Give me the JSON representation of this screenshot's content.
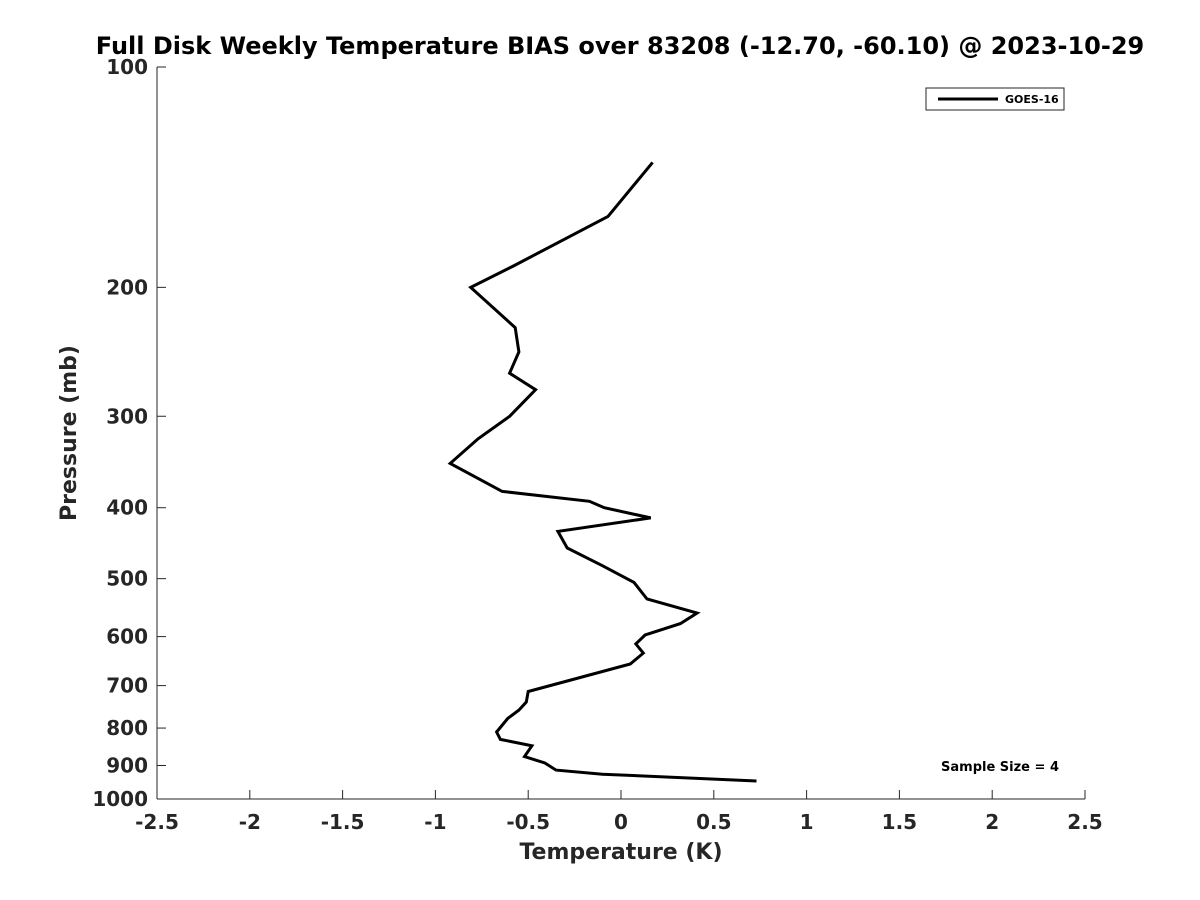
{
  "chart_data": {
    "type": "line",
    "title": "Full Disk Weekly Temperature BIAS over 83208 (-12.70, -60.10) @ 2023-10-29",
    "xlabel": "Temperature (K)",
    "ylabel": "Pressure (mb)",
    "xlim": [
      -2.5,
      2.5
    ],
    "ylim": [
      100,
      1000
    ],
    "y_scale": "log",
    "y_reversed": true,
    "grid": false,
    "x_ticks": [
      -2.5,
      -2,
      -1.5,
      -1,
      -0.5,
      0,
      0.5,
      1,
      1.5,
      2,
      2.5
    ],
    "x_tick_labels": [
      "-2.5",
      "-2",
      "-1.5",
      "-1",
      "-0.5",
      "0",
      "0.5",
      "1",
      "1.5",
      "2",
      "2.5"
    ],
    "y_ticks": [
      100,
      200,
      300,
      400,
      500,
      600,
      700,
      800,
      900,
      1000
    ],
    "y_tick_labels": [
      "100",
      "200",
      "300",
      "400",
      "500",
      "600",
      "700",
      "800",
      "900",
      "1000"
    ],
    "legend_position": "top-right",
    "series": [
      {
        "name": "GOES-16",
        "color": "#000000",
        "x": [
          0.17,
          -0.07,
          -0.58,
          -0.81,
          -0.57,
          -0.55,
          -0.6,
          -0.46,
          -0.6,
          -0.77,
          -0.92,
          -0.64,
          -0.17,
          -0.09,
          0.16,
          -0.34,
          -0.29,
          -0.1,
          0.07,
          0.14,
          0.41,
          0.32,
          0.13,
          0.08,
          0.12,
          0.05,
          -0.29,
          -0.5,
          -0.51,
          -0.55,
          -0.61,
          -0.67,
          -0.65,
          -0.48,
          -0.52,
          -0.41,
          -0.35,
          -0.1,
          0.73
        ],
        "y": [
          135,
          160,
          187,
          200,
          227,
          245,
          262,
          276,
          300,
          322,
          348,
          380,
          392,
          400,
          413,
          431,
          454,
          480,
          506,
          533,
          557,
          576,
          597,
          614,
          632,
          654,
          690,
          713,
          737,
          756,
          776,
          810,
          829,
          846,
          875,
          893,
          913,
          925,
          945
        ]
      }
    ],
    "annotation": "Sample Size = 4"
  }
}
